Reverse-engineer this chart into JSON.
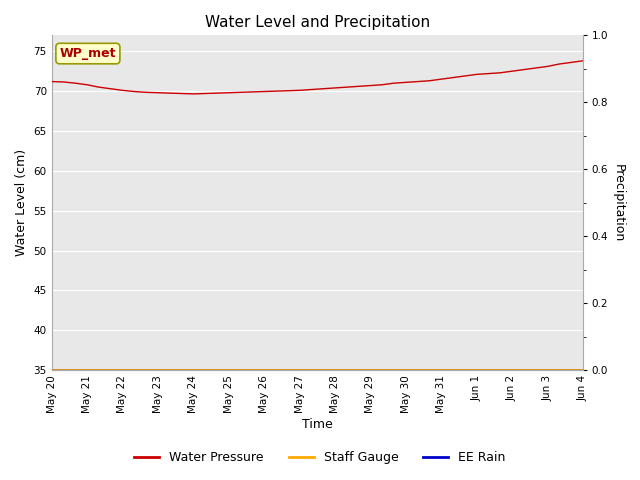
{
  "title": "Water Level and Precipitation",
  "xlabel": "Time",
  "ylabel_left": "Water Level (cm)",
  "ylabel_right": "Precipitation",
  "annotation_text": "WP_met",
  "annotation_bg": "#ffffcc",
  "annotation_border": "#999900",
  "annotation_text_color": "#aa0000",
  "ylim_left": [
    35,
    77
  ],
  "ylim_right": [
    0.0,
    1.0
  ],
  "yticks_left": [
    35,
    40,
    45,
    50,
    55,
    60,
    65,
    70,
    75
  ],
  "yticks_right": [
    0.0,
    0.2,
    0.4,
    0.6,
    0.8,
    1.0
  ],
  "x_tick_labels": [
    "May 20",
    "May 21",
    "May 22",
    "May 23",
    "May 24",
    "May 25",
    "May 26",
    "May 27",
    "May 28",
    "May 29",
    "May 30",
    "May 31",
    "Jun 1",
    "Jun 2",
    "Jun 3",
    "Jun 4"
  ],
  "water_pressure_color": "#cc0000",
  "staff_gauge_color": "#ffaa00",
  "ee_rain_color": "#0000cc",
  "fig_bg_color": "#ffffff",
  "plot_bg_color": "#e8e8e8",
  "legend_items": [
    "Water Pressure",
    "Staff Gauge",
    "EE Rain"
  ],
  "legend_colors": [
    "#cc0000",
    "#ffaa00",
    "#0000cc"
  ],
  "water_pressure_values": [
    71.2,
    71.15,
    71.0,
    70.8,
    70.5,
    70.3,
    70.1,
    69.95,
    69.85,
    69.8,
    69.75,
    69.7,
    69.65,
    69.7,
    69.75,
    69.8,
    69.85,
    69.9,
    69.95,
    70.0,
    70.05,
    70.1,
    70.2,
    70.3,
    70.4,
    70.5,
    70.6,
    70.7,
    70.8,
    71.0,
    71.1,
    71.2,
    71.3,
    71.5,
    71.7,
    71.9,
    72.1,
    72.2,
    72.3,
    72.5,
    72.7,
    72.9,
    73.1,
    73.4,
    73.6,
    73.8
  ],
  "blue_line_value": 35.0,
  "orange_line_value": 35.0,
  "grid_color": "#ffffff",
  "tick_label_fontsize": 7.5,
  "axis_label_fontsize": 9
}
